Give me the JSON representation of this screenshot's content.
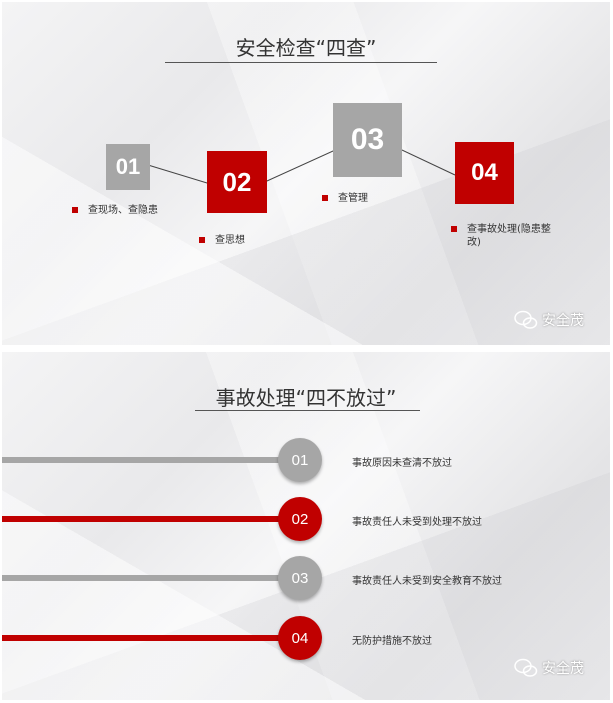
{
  "slide1": {
    "title": "安全检查“四查”",
    "steps": [
      {
        "num": "01",
        "text": "查现场、查隐患",
        "color": "#a6a6a6"
      },
      {
        "num": "02",
        "text": "查思想",
        "color": "#c00000"
      },
      {
        "num": "03",
        "text": "查管理",
        "color": "#a6a6a6"
      },
      {
        "num": "04",
        "text": "查事故处理(隐患整改)",
        "color": "#c00000"
      }
    ],
    "watermark": "安全茂"
  },
  "slide2": {
    "title": "事故处理“四不放过”",
    "items": [
      {
        "num": "01",
        "text": "事故原因未查清不放过",
        "color": "#a6a6a6"
      },
      {
        "num": "02",
        "text": "事故责任人未受到处理不放过",
        "color": "#c00000"
      },
      {
        "num": "03",
        "text": "事故责任人未受到安全教育不放过",
        "color": "#a6a6a6"
      },
      {
        "num": "04",
        "text": "无防护措施不放过",
        "color": "#c00000"
      }
    ],
    "watermark": "安全茂"
  }
}
